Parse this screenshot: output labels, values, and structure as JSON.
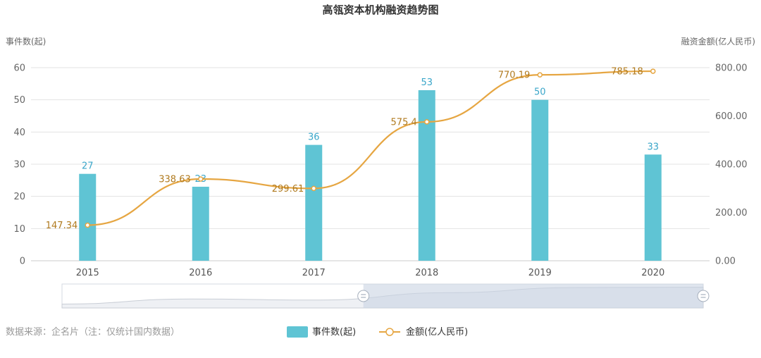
{
  "chart_data": {
    "type": "bar",
    "title": "高瓴资本机构融资趋势图",
    "categories": [
      "2015",
      "2016",
      "2017",
      "2018",
      "2019",
      "2020"
    ],
    "left_axis": {
      "name": "事件数(起)",
      "range": [
        0,
        60
      ],
      "ticks": [
        "0",
        "10",
        "20",
        "30",
        "40",
        "50",
        "60"
      ]
    },
    "right_axis": {
      "name": "融资金额(亿人民币)",
      "range": [
        0,
        800
      ],
      "ticks": [
        "0.00",
        "200.00",
        "400.00",
        "600.00",
        "800.00"
      ]
    },
    "series": [
      {
        "name": "事件数(起)",
        "type": "bar",
        "axis": "left",
        "color": "#5fc4d4",
        "values": [
          27,
          23,
          36,
          53,
          50,
          33
        ],
        "labels": [
          "27",
          "23",
          "36",
          "53",
          "50",
          "33"
        ]
      },
      {
        "name": "金额(亿人民币)",
        "type": "line",
        "axis": "right",
        "smooth": true,
        "color": "#e6a642",
        "values": [
          147.34,
          338.63,
          299.61,
          575.4,
          770.19,
          785.18
        ],
        "labels": [
          "147.34",
          "338.63",
          "299.61",
          "575.4",
          "770.19",
          "785.18"
        ]
      }
    ],
    "grid": true,
    "legend_position": "bottom-center",
    "zoom_slider": {
      "start_fraction": 0.47,
      "end_fraction": 1.0
    }
  },
  "footer": {
    "source": "数据来源：企名片（注：仅统计国内数据）"
  },
  "colors": {
    "label_bar": "#3aa6c9",
    "label_line": "#b07a1e",
    "grid": "#e3e3e3",
    "axis": "#cccccc"
  }
}
